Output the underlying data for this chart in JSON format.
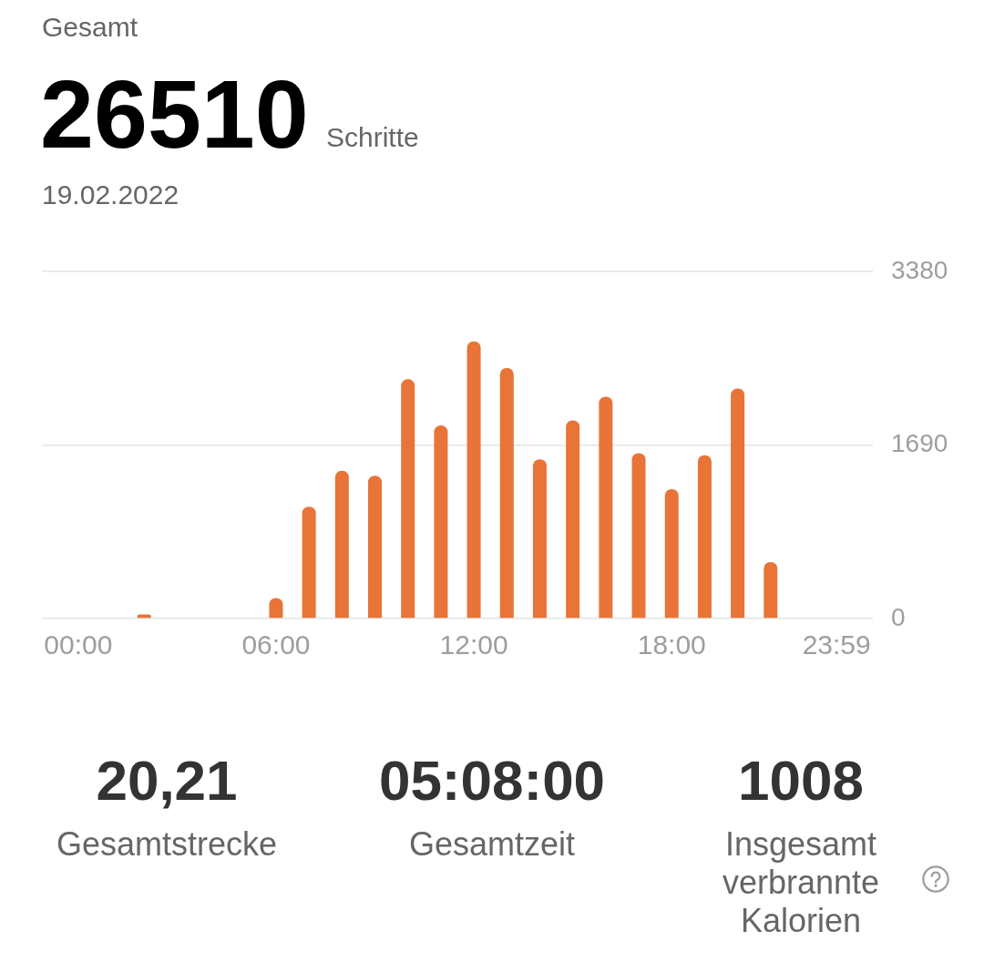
{
  "chart_data": {
    "type": "bar",
    "title": "Gesamt",
    "subtitle": "19.02.2022",
    "annotations": [
      "26510",
      "Schritte",
      "20,21",
      "Gesamtstrecke",
      "05:08:00",
      "Gesamtzeit",
      "1008",
      "Insgesamt verbrannte Kalorien"
    ],
    "categories": [
      "00:00",
      null,
      null,
      null,
      null,
      null,
      "06:00",
      null,
      null,
      null,
      null,
      null,
      "12:00",
      null,
      null,
      null,
      null,
      null,
      "18:00",
      null,
      null,
      null,
      null,
      "23:59"
    ],
    "values": [
      0,
      0,
      40,
      0,
      0,
      0,
      200,
      1090,
      1440,
      1390,
      2330,
      1880,
      2700,
      2440,
      1550,
      1930,
      2160,
      1610,
      1260,
      1590,
      2240,
      550,
      0,
      0
    ],
    "color": "#e87437",
    "ylim": [
      0,
      3380
    ],
    "yticks": [
      0,
      1690,
      3380
    ],
    "grid": "y",
    "legend": false
  }
}
